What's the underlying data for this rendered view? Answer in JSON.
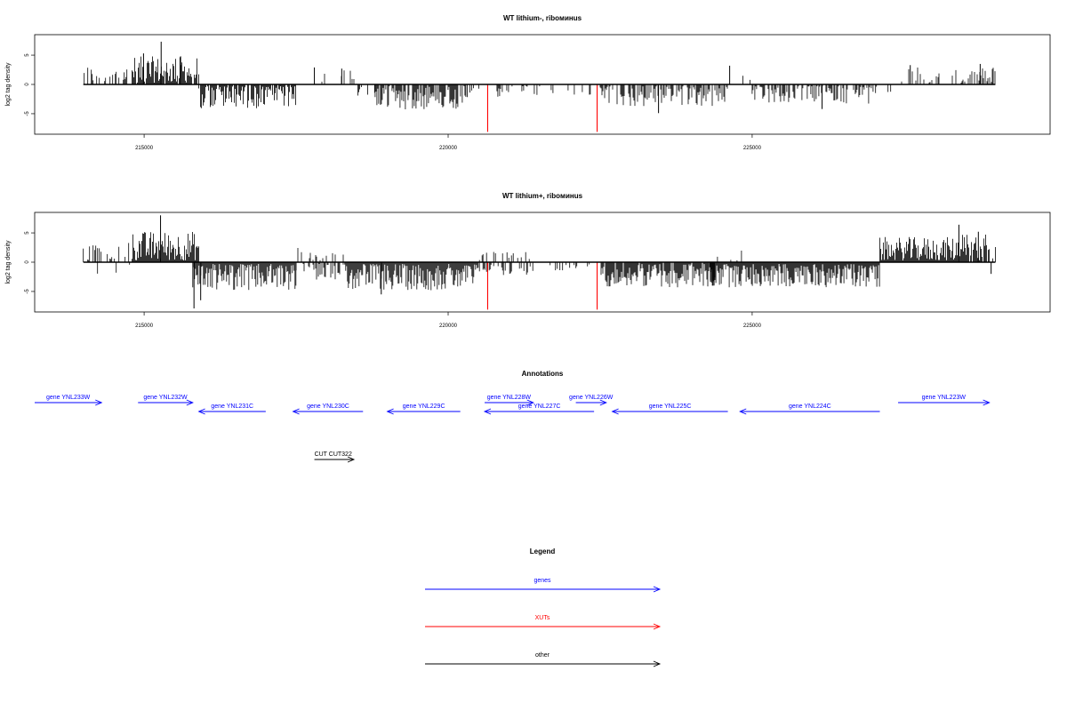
{
  "chart_data": [
    {
      "type": "bar",
      "title": "WT lithium-, riboминus",
      "ylabel": "log2 tag density",
      "xlim": [
        213200,
        229900
      ],
      "ylim": [
        -8.5,
        8.5
      ],
      "xticks": [
        215000,
        220000,
        225000
      ],
      "yticks": [
        -5,
        0,
        5
      ],
      "xut_lines": [
        220650,
        222450
      ],
      "segments": [
        {
          "range": [
            214000,
            214800
          ],
          "sign": 1,
          "density": 0.35,
          "amp": 3.0
        },
        {
          "range": [
            214800,
            215900
          ],
          "sign": 1,
          "density": 0.9,
          "amp": 4.5
        },
        {
          "range": [
            215900,
            217500
          ],
          "sign": -1,
          "density": 0.8,
          "amp": 3.8
        },
        {
          "range": [
            217500,
            218500
          ],
          "sign": 1,
          "density": 0.12,
          "amp": 2.2
        },
        {
          "range": [
            218500,
            218800
          ],
          "sign": -1,
          "density": 0.2,
          "amp": 2.0
        },
        {
          "range": [
            218800,
            220300
          ],
          "sign": -1,
          "density": 0.8,
          "amp": 4.0
        },
        {
          "range": [
            220300,
            220600
          ],
          "sign": -1,
          "density": 0.2,
          "amp": 2.5
        },
        {
          "range": [
            220700,
            222400
          ],
          "sign": -1,
          "density": 0.15,
          "amp": 2.0
        },
        {
          "range": [
            222500,
            224600
          ],
          "sign": -1,
          "density": 0.6,
          "amp": 3.5
        },
        {
          "range": [
            224600,
            225000
          ],
          "sign": 1,
          "density": 0.12,
          "amp": 2.5
        },
        {
          "range": [
            225000,
            227000
          ],
          "sign": -1,
          "density": 0.55,
          "amp": 3.0
        },
        {
          "range": [
            227000,
            227400
          ],
          "sign": -1,
          "density": 0.1,
          "amp": 1.5
        },
        {
          "range": [
            227400,
            229000
          ],
          "sign": 1,
          "density": 0.35,
          "amp": 2.6
        }
      ],
      "spikes": [
        {
          "x": 215280,
          "y": 7.3
        },
        {
          "x": 214990,
          "y": 5.3
        },
        {
          "x": 215600,
          "y": 4.8
        },
        {
          "x": 218250,
          "y": 2.7
        },
        {
          "x": 217800,
          "y": 2.9
        },
        {
          "x": 224630,
          "y": 3.2
        },
        {
          "x": 227600,
          "y": 3.3
        },
        {
          "x": 228750,
          "y": 3.5
        },
        {
          "x": 223460,
          "y": -4.9
        },
        {
          "x": 226150,
          "y": -4.2
        }
      ]
    },
    {
      "type": "bar",
      "title": "WT lithium+, riboминus",
      "ylabel": "log2 tag density",
      "xlim": [
        213200,
        229900
      ],
      "ylim": [
        -8.5,
        8.5
      ],
      "xticks": [
        215000,
        220000,
        225000
      ],
      "yticks": [
        -5,
        0,
        5
      ],
      "xut_lines": [
        220650,
        222450
      ],
      "segments": [
        {
          "range": [
            214000,
            214800
          ],
          "sign": 1,
          "density": 0.25,
          "amp": 3.0
        },
        {
          "range": [
            214000,
            214800
          ],
          "sign": -1,
          "density": 0.05,
          "amp": 1.8
        },
        {
          "range": [
            214800,
            215900
          ],
          "sign": 1,
          "density": 1.0,
          "amp": 5.0
        },
        {
          "range": [
            215800,
            217500
          ],
          "sign": -1,
          "density": 1.0,
          "amp": 4.5
        },
        {
          "range": [
            217500,
            218300
          ],
          "sign": 1,
          "density": 0.3,
          "amp": 2.2
        },
        {
          "range": [
            217500,
            218300
          ],
          "sign": -1,
          "density": 0.5,
          "amp": 2.8
        },
        {
          "range": [
            218300,
            220500
          ],
          "sign": -1,
          "density": 1.0,
          "amp": 4.5
        },
        {
          "range": [
            220500,
            221400
          ],
          "sign": 1,
          "density": 0.3,
          "amp": 1.6
        },
        {
          "range": [
            220500,
            221400
          ],
          "sign": -1,
          "density": 0.4,
          "amp": 2.0
        },
        {
          "range": [
            221400,
            222400
          ],
          "sign": -1,
          "density": 0.15,
          "amp": 1.2
        },
        {
          "range": [
            222500,
            224400
          ],
          "sign": -1,
          "density": 0.9,
          "amp": 4.0
        },
        {
          "range": [
            224400,
            224900
          ],
          "sign": 1,
          "density": 0.15,
          "amp": 1.8
        },
        {
          "range": [
            224300,
            227100
          ],
          "sign": -1,
          "density": 1.0,
          "amp": 4.0
        },
        {
          "range": [
            227100,
            228400
          ],
          "sign": 1,
          "density": 1.0,
          "amp": 4.0
        },
        {
          "range": [
            228400,
            229000
          ],
          "sign": 1,
          "density": 0.8,
          "amp": 4.5
        }
      ],
      "spikes": [
        {
          "x": 215270,
          "y": 8.0
        },
        {
          "x": 215820,
          "y": -7.9
        },
        {
          "x": 215930,
          "y": -6.5
        },
        {
          "x": 218900,
          "y": -5.5
        },
        {
          "x": 228400,
          "y": 6.4
        },
        {
          "x": 228720,
          "y": 5.2
        },
        {
          "x": 228930,
          "y": -2.0
        }
      ]
    }
  ],
  "annotations": {
    "title": "Annotations",
    "genes": [
      {
        "label": "gene YNL233W",
        "strand": "+",
        "start": 213200,
        "end": 214300,
        "row": 0
      },
      {
        "label": "gene YNL232W",
        "strand": "+",
        "start": 214900,
        "end": 215800,
        "row": 0
      },
      {
        "label": "gene YNL231C",
        "strand": "-",
        "start": 215900,
        "end": 217000,
        "row": 1
      },
      {
        "label": "gene YNL230C",
        "strand": "-",
        "start": 217450,
        "end": 218600,
        "row": 1
      },
      {
        "label": "gene YNL229C",
        "strand": "-",
        "start": 219000,
        "end": 220200,
        "row": 1
      },
      {
        "label": "gene YNL228W",
        "strand": "+",
        "start": 220600,
        "end": 221400,
        "row": 0
      },
      {
        "label": "gene YNL227C",
        "strand": "-",
        "start": 220600,
        "end": 222400,
        "row": 1
      },
      {
        "label": "gene YNL226W",
        "strand": "+",
        "start": 222100,
        "end": 222600,
        "row": 0
      },
      {
        "label": "gene YNL225C",
        "strand": "-",
        "start": 222700,
        "end": 224600,
        "row": 1
      },
      {
        "label": "gene YNL224C",
        "strand": "-",
        "start": 224800,
        "end": 227100,
        "row": 1
      },
      {
        "label": "gene YNL223W",
        "strand": "+",
        "start": 227400,
        "end": 228900,
        "row": 0
      }
    ],
    "others": [
      {
        "label": "CUT CUT322",
        "strand": "+",
        "start": 217800,
        "end": 218450
      }
    ]
  },
  "legend": {
    "title": "Legend",
    "items": [
      {
        "label": "genes",
        "color": "#0000ff"
      },
      {
        "label": "XUTs",
        "color": "#ff0000"
      },
      {
        "label": "other",
        "color": "#000000"
      }
    ]
  },
  "colors": {
    "gene": "#0000ff",
    "xut": "#ff0000",
    "other": "#000000",
    "bars": "#000000"
  }
}
